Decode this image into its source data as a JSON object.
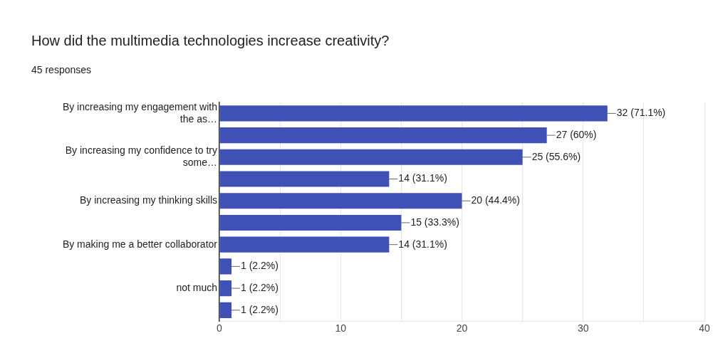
{
  "chart_data": {
    "type": "bar",
    "orientation": "horizontal",
    "title": "How did the multimedia technologies increase creativity?",
    "subtitle": "45 responses",
    "categories": [
      "By increasing my engagement with the as…",
      null,
      "By increasing my confidence to try some…",
      null,
      "By increasing my thinking skills",
      null,
      "By making me a better collaborator",
      null,
      "not much",
      null
    ],
    "values": [
      32,
      27,
      25,
      14,
      20,
      15,
      14,
      1,
      1,
      1
    ],
    "value_labels": [
      "32 (71.1%)",
      "27 (60%)",
      "25 (55.6%)",
      "14 (31.1%)",
      "20 (44.4%)",
      "15 (33.3%)",
      "14 (31.1%)",
      "1 (2.2%)",
      "1 (2.2%)",
      "1 (2.2%)"
    ],
    "color": "#3f51b5",
    "xlim": [
      0,
      40
    ],
    "xticks": [
      0,
      {
        "value": 5,
        "label": null
      },
      10,
      {
        "value": 15,
        "label": null
      },
      20,
      {
        "value": 25,
        "label": null
      },
      30,
      {
        "value": 35,
        "label": null
      },
      40
    ],
    "grid": "x",
    "legend": false
  }
}
